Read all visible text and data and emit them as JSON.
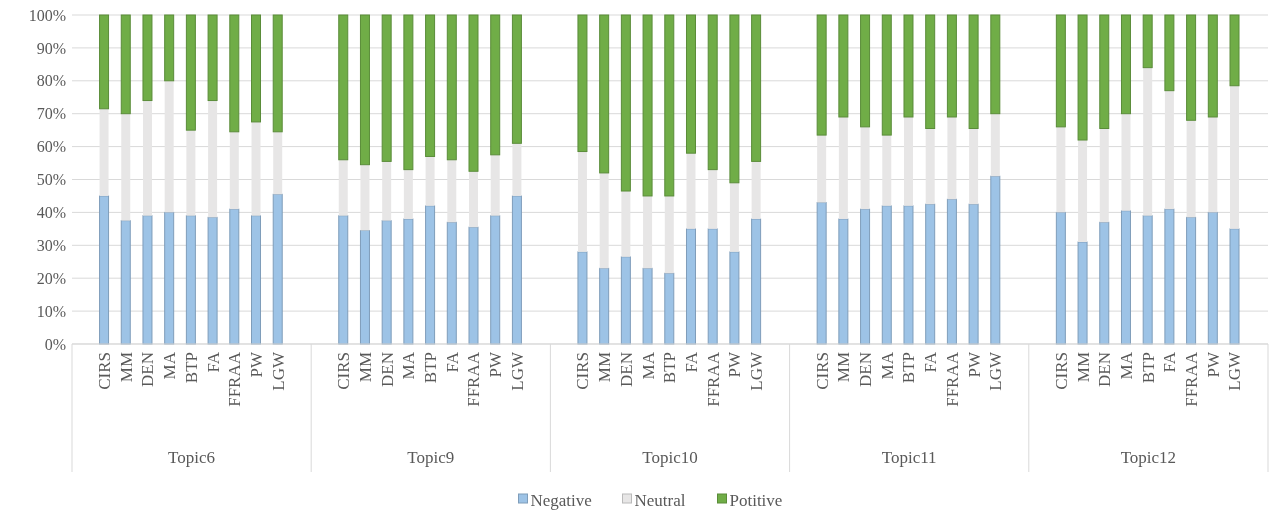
{
  "chart_data": {
    "type": "bar",
    "stacked": true,
    "categories": [
      "CIRS",
      "MM",
      "DEN",
      "MA",
      "BTP",
      "FA",
      "FFRAA",
      "PW",
      "LGW",
      "CIRS",
      "MM",
      "DEN",
      "MA",
      "BTP",
      "FA",
      "FFRAA",
      "PW",
      "LGW",
      "CIRS",
      "MM",
      "DEN",
      "MA",
      "BTP",
      "FA",
      "FFRAA",
      "PW",
      "LGW",
      "CIRS",
      "MM",
      "DEN",
      "MA",
      "BTP",
      "FA",
      "FFRAA",
      "PW",
      "LGW",
      "CIRS",
      "MM",
      "DEN",
      "MA",
      "BTP",
      "FA",
      "FFRAA",
      "PW",
      "LGW"
    ],
    "annotations": [
      "Topic6",
      "Topic9",
      "Topic10",
      "Topic11",
      "Topic12"
    ],
    "series": [
      {
        "name": "Negative",
        "color": "#9dc3e6",
        "values": [
          45,
          37.5,
          39,
          40,
          39,
          38.5,
          41,
          39,
          45.5,
          39,
          34.5,
          37.5,
          38,
          42,
          37,
          35.5,
          39,
          45,
          28,
          23,
          26.5,
          23,
          21.5,
          35,
          35,
          28,
          38,
          43,
          38,
          41,
          42,
          42,
          42.5,
          44,
          42.5,
          51,
          40,
          31,
          37,
          40.5,
          39,
          41,
          38.5,
          40,
          35
        ]
      },
      {
        "name": "Neutral",
        "color": "#e7e6e6",
        "values": [
          26.5,
          32.5,
          35,
          40,
          26,
          35.5,
          23.5,
          28.5,
          19,
          17,
          20,
          18,
          15,
          15,
          19,
          17,
          18.5,
          16,
          30.5,
          29,
          20,
          22,
          23.5,
          23,
          18,
          21,
          17.5,
          20.5,
          31,
          25,
          21.5,
          27,
          23,
          25,
          23,
          19,
          26,
          31,
          28.5,
          29.5,
          45,
          36,
          29.5,
          29,
          43.5
        ]
      },
      {
        "name": "Potitive",
        "color": "#70ad47",
        "values": [
          28.5,
          30,
          26,
          20,
          35,
          26,
          35.5,
          32.5,
          35.5,
          44,
          45.5,
          44.5,
          47,
          43,
          44,
          47.5,
          42.5,
          39,
          41.5,
          48,
          53.5,
          55,
          55,
          42,
          47,
          51,
          44.5,
          36.5,
          31,
          34,
          36.5,
          31,
          34.5,
          31,
          34.5,
          30,
          34,
          38,
          34.5,
          30,
          16,
          23,
          32,
          31,
          21.5
        ]
      }
    ],
    "ylim": [
      0,
      100
    ],
    "yticks": [
      {
        "value": 0,
        "label": "0%"
      },
      {
        "value": 10,
        "label": "10%"
      },
      {
        "value": 20,
        "label": "20%"
      },
      {
        "value": 30,
        "label": "30%"
      },
      {
        "value": 40,
        "label": "40%"
      },
      {
        "value": 50,
        "label": "50%"
      },
      {
        "value": 60,
        "label": "60%"
      },
      {
        "value": 70,
        "label": "70%"
      },
      {
        "value": 80,
        "label": "80%"
      },
      {
        "value": 90,
        "label": "90%"
      },
      {
        "value": 100,
        "label": "100%"
      }
    ],
    "grid": "y",
    "legend": "bottom"
  }
}
